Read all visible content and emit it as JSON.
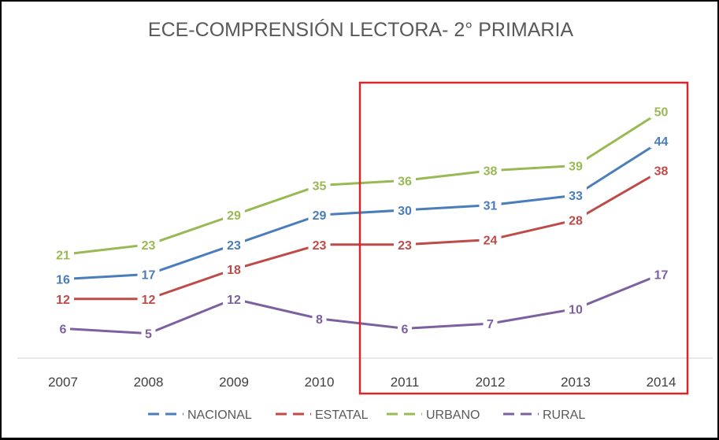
{
  "chart_data": {
    "type": "line",
    "title": "ECE-COMPRENSIÓN LECTORA- 2° PRIMARIA",
    "categories": [
      "2007",
      "2008",
      "2009",
      "2010",
      "2011",
      "2012",
      "2013",
      "2014"
    ],
    "xlabel": "",
    "ylabel": "",
    "ylim": [
      0,
      55
    ],
    "grid": false,
    "legend_position": "bottom",
    "highlight": {
      "from": "2011",
      "to": "2014",
      "color": "#d9262c"
    },
    "series": [
      {
        "name": "NACIONAL",
        "color": "#4a7ebb",
        "values": [
          16,
          17,
          23,
          29,
          30,
          31,
          33,
          44
        ]
      },
      {
        "name": "ESTATAL",
        "color": "#be4b48",
        "values": [
          12,
          12,
          18,
          23,
          23,
          24,
          28,
          38
        ]
      },
      {
        "name": "URBANO",
        "color": "#98b954",
        "values": [
          21,
          23,
          29,
          35,
          36,
          38,
          39,
          50
        ]
      },
      {
        "name": "RURAL",
        "color": "#7d60a0",
        "values": [
          6,
          5,
          12,
          8,
          6,
          7,
          10,
          17
        ]
      }
    ]
  }
}
